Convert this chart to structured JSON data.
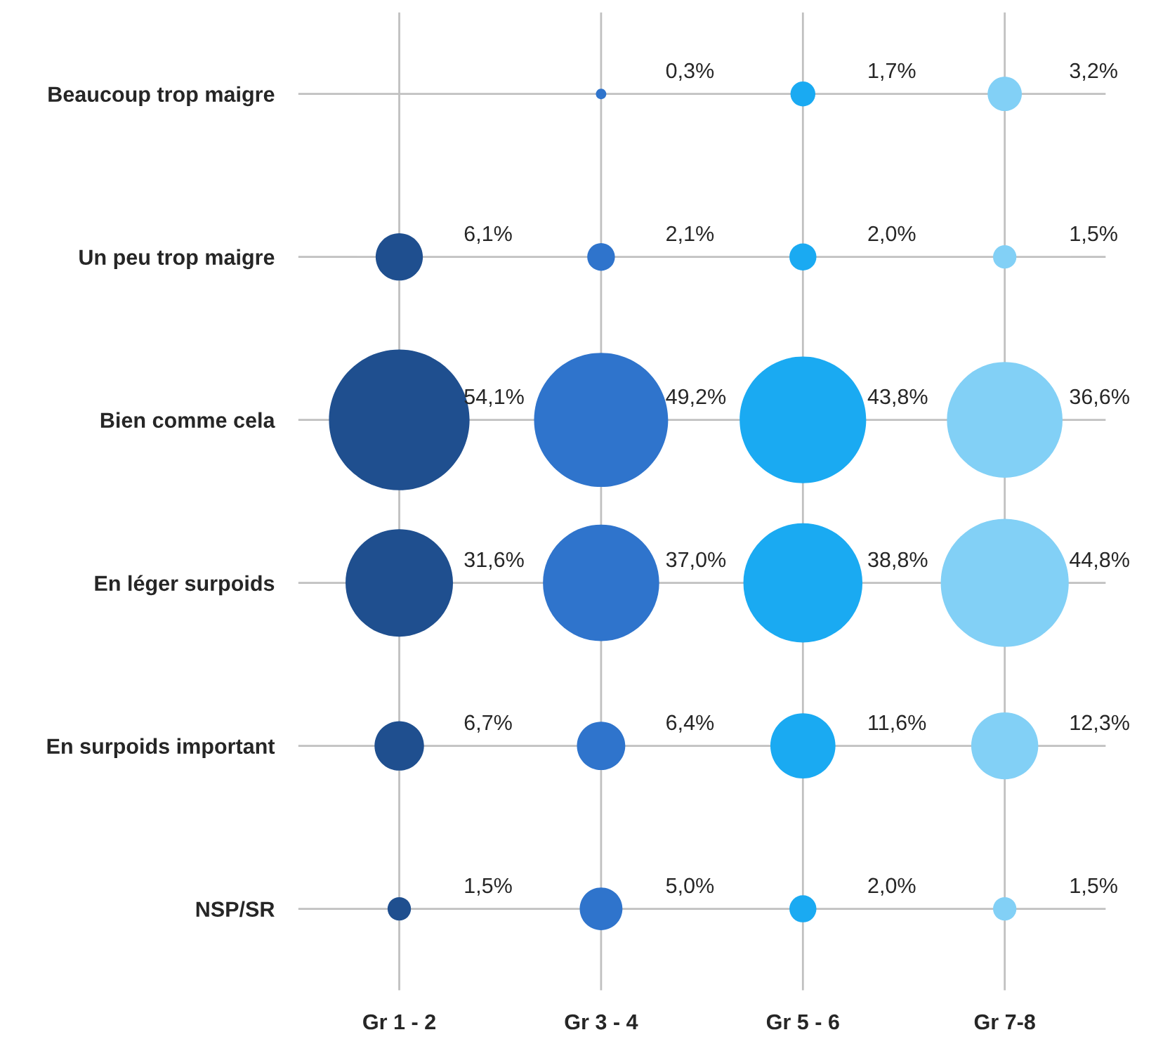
{
  "chart_data": {
    "type": "other",
    "categories": [
      "Gr 1 - 2",
      "Gr 3 - 4",
      "Gr 5 - 6",
      "Gr 7-8"
    ],
    "y_categories": [
      "Beaucoup trop maigre",
      "Un peu trop maigre",
      "Bien comme cela",
      "En léger surpoids",
      "En surpoids important",
      "NSP/SR"
    ],
    "series": [
      {
        "colors": [
          "#1f4f8f",
          "#2f74cc",
          "#1aaaf2",
          "#82d0f6"
        ],
        "values": [
          null,
          0.3,
          1.7,
          3.2
        ],
        "value_labels": [
          null,
          "0,3%",
          "1,7%",
          "3,2%"
        ]
      },
      {
        "colors": [
          "#1f4f8f",
          "#2f74cc",
          "#1aaaf2",
          "#82d0f6"
        ],
        "values": [
          6.1,
          2.1,
          2.0,
          1.5
        ],
        "value_labels": [
          "6,1%",
          "2,1%",
          "2,0%",
          "1,5%"
        ]
      },
      {
        "colors": [
          "#1f4f8f",
          "#2f74cc",
          "#1aaaf2",
          "#82d0f6"
        ],
        "values": [
          54.1,
          49.2,
          43.8,
          36.6
        ],
        "value_labels": [
          "54,1%",
          "49,2%",
          "43,8%",
          "36,6%"
        ]
      },
      {
        "colors": [
          "#1f4f8f",
          "#2f74cc",
          "#1aaaf2",
          "#82d0f6"
        ],
        "values": [
          31.6,
          37.0,
          38.8,
          44.8
        ],
        "value_labels": [
          "31,6%",
          "37,0%",
          "38,8%",
          "44,8%"
        ]
      },
      {
        "colors": [
          "#1f4f8f",
          "#2f74cc",
          "#1aaaf2",
          "#82d0f6"
        ],
        "values": [
          6.7,
          6.4,
          11.6,
          12.3
        ],
        "value_labels": [
          "6,7%",
          "6,4%",
          "11,6%",
          "12,3%"
        ]
      },
      {
        "colors": [
          "#1f4f8f",
          "#2f74cc",
          "#1aaaf2",
          "#82d0f6"
        ],
        "values": [
          1.5,
          5.0,
          2.0,
          1.5
        ],
        "value_labels": [
          "1,5%",
          "5,0%",
          "2,0%",
          "1,5%"
        ]
      }
    ]
  }
}
